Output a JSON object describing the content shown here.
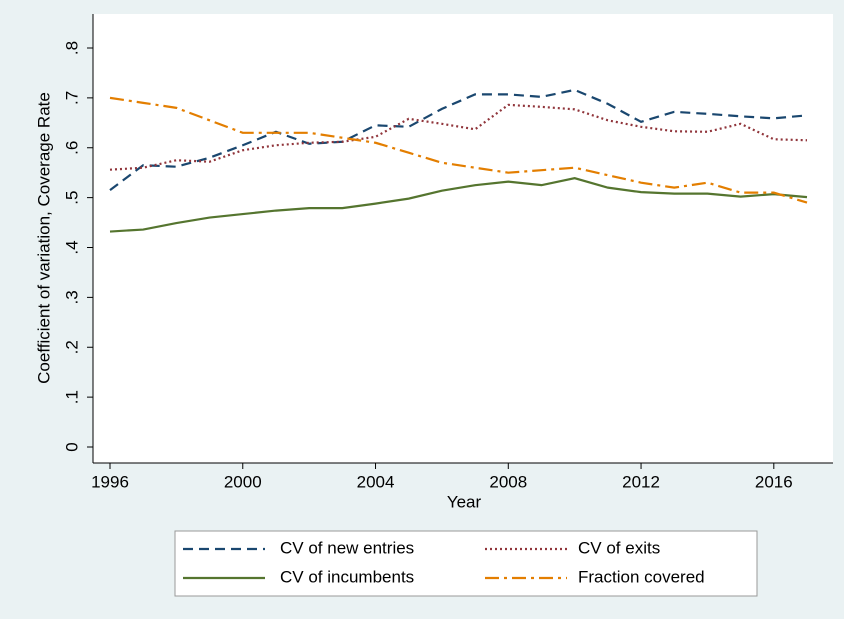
{
  "chart_data": {
    "type": "line",
    "x_label": "Year",
    "y_label": "Coefficient of variation, Coverage Rate",
    "x": [
      1996,
      1997,
      1998,
      1999,
      2000,
      2001,
      2002,
      2003,
      2004,
      2005,
      2006,
      2007,
      2008,
      2009,
      2010,
      2011,
      2012,
      2013,
      2014,
      2015,
      2016,
      2017
    ],
    "series": [
      {
        "name": "CV of new entries",
        "color": "#1a476f",
        "dash": "dashed",
        "values": [
          0.515,
          0.565,
          0.562,
          0.58,
          0.605,
          0.632,
          0.608,
          0.612,
          0.645,
          0.642,
          0.678,
          0.707,
          0.707,
          0.702,
          0.716,
          0.688,
          0.652,
          0.672,
          0.668,
          0.663,
          0.659,
          0.665
        ]
      },
      {
        "name": "CV of exits",
        "color": "#90353b",
        "dash": "dotted",
        "values": [
          0.556,
          0.56,
          0.575,
          0.572,
          0.595,
          0.605,
          0.61,
          0.612,
          0.622,
          0.658,
          0.648,
          0.637,
          0.686,
          0.682,
          0.677,
          0.655,
          0.642,
          0.633,
          0.632,
          0.648,
          0.617,
          0.615
        ]
      },
      {
        "name": "CV of incumbents",
        "color": "#55752f",
        "dash": "solid",
        "values": [
          0.432,
          0.436,
          0.449,
          0.46,
          0.467,
          0.474,
          0.479,
          0.479,
          0.488,
          0.498,
          0.514,
          0.525,
          0.532,
          0.525,
          0.539,
          0.52,
          0.511,
          0.508,
          0.508,
          0.502,
          0.507,
          0.501
        ]
      },
      {
        "name": "Fraction covered",
        "color": "#e37e00",
        "dash": "dashdot",
        "values": [
          0.7,
          0.69,
          0.68,
          0.655,
          0.63,
          0.63,
          0.63,
          0.62,
          0.61,
          0.59,
          0.57,
          0.56,
          0.55,
          0.555,
          0.56,
          0.545,
          0.53,
          0.52,
          0.53,
          0.51,
          0.51,
          0.49
        ]
      }
    ],
    "xlim": [
      1996,
      2017
    ],
    "xticks": [
      1996,
      2000,
      2004,
      2008,
      2012,
      2016
    ],
    "ylim": [
      0,
      0.8
    ],
    "yticks": [
      0,
      {
        "value": 0.1,
        "label": ".1"
      },
      {
        "value": 0.2,
        "label": ".2"
      },
      {
        "value": 0.3,
        "label": ".3"
      },
      {
        "value": 0.4,
        "label": ".4"
      },
      {
        "value": 0.5,
        "label": ".5"
      },
      {
        "value": 0.6,
        "label": ".6"
      },
      {
        "value": 0.7,
        "label": ".7"
      },
      {
        "value": 0.8,
        "label": ".8"
      }
    ],
    "grid": false,
    "legend": "bottom"
  }
}
